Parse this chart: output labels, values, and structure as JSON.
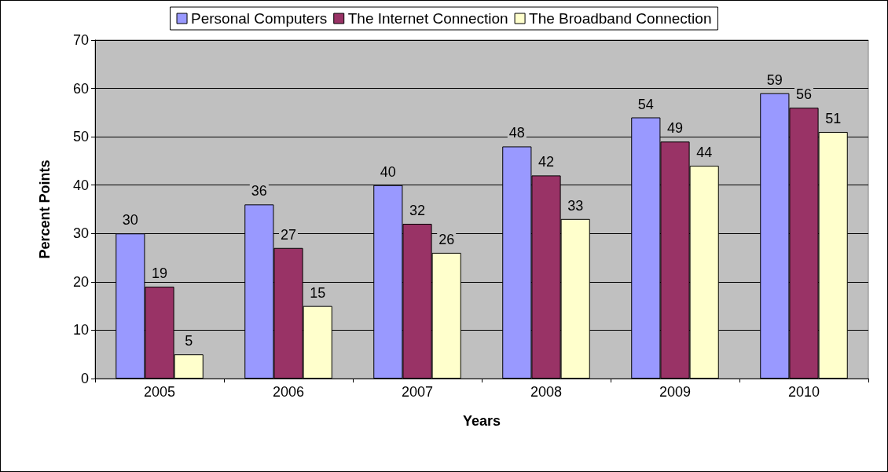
{
  "chart_data": {
    "type": "bar",
    "xlabel": "Years",
    "ylabel": "Percent Points",
    "categories": [
      "2005",
      "2006",
      "2007",
      "2008",
      "2009",
      "2010"
    ],
    "series": [
      {
        "name": "Personal Computers",
        "color": "#9999ff",
        "values": [
          30,
          36,
          40,
          48,
          54,
          59
        ]
      },
      {
        "name": "The Internet Connection",
        "color": "#993366",
        "values": [
          19,
          27,
          32,
          42,
          49,
          56
        ]
      },
      {
        "name": "The Broadband Connection",
        "color": "#ffffcc",
        "values": [
          5,
          15,
          26,
          33,
          44,
          51
        ]
      }
    ],
    "ylim": [
      0,
      70
    ],
    "yticks": [
      0,
      10,
      20,
      30,
      40,
      50,
      60,
      70
    ],
    "grid": "y",
    "legend": "top",
    "data_labels": true
  }
}
